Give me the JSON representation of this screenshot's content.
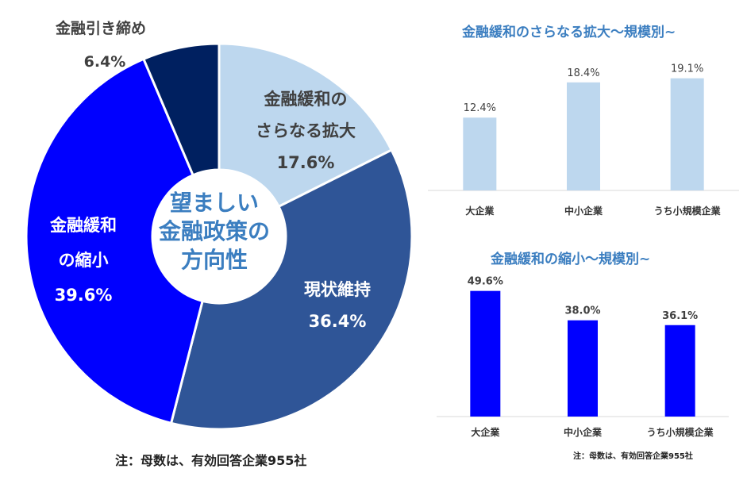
{
  "chart_data": [
    {
      "type": "pie",
      "center_label": [
        "望ましい",
        "金融政策の",
        "方向性"
      ],
      "slices": [
        {
          "label_lines": [
            "金融緩和の",
            "さらなる拡大"
          ],
          "value": 17.6,
          "value_label": "17.6%",
          "color": "#bdd7ee"
        },
        {
          "label_lines": [
            "現状維持"
          ],
          "value": 36.4,
          "value_label": "36.4%",
          "color": "#2f5597"
        },
        {
          "label_lines": [
            "金融緩和",
            "の縮小"
          ],
          "value": 39.6,
          "value_label": "39.6%",
          "color": "#0000ff"
        },
        {
          "label_lines": [
            "金融引き締め"
          ],
          "value": 6.4,
          "value_label": "6.4%",
          "color": "#002060"
        }
      ],
      "note": "注：母数は、有効回答企業955社"
    },
    {
      "type": "bar",
      "title": "金融緩和のさらなる拡大～規模別~",
      "categories": [
        "大企業",
        "中小企業",
        "うち小規模企業"
      ],
      "values": [
        12.4,
        18.4,
        19.1
      ],
      "value_labels": [
        "12.4%",
        "18.4%",
        "19.1%"
      ],
      "color": "#bdd7ee",
      "ylim": [
        0,
        25
      ]
    },
    {
      "type": "bar",
      "title": "金融緩和の縮小～規模別~",
      "categories": [
        "大企業",
        "中小企業",
        "うち小規模企業"
      ],
      "values": [
        49.6,
        38.0,
        36.1
      ],
      "value_labels": [
        "49.6%",
        "38.0%",
        "36.1%"
      ],
      "color": "#0000ff",
      "ylim": [
        0,
        52
      ],
      "note": "注：母数は、有効回答企業955社"
    }
  ]
}
